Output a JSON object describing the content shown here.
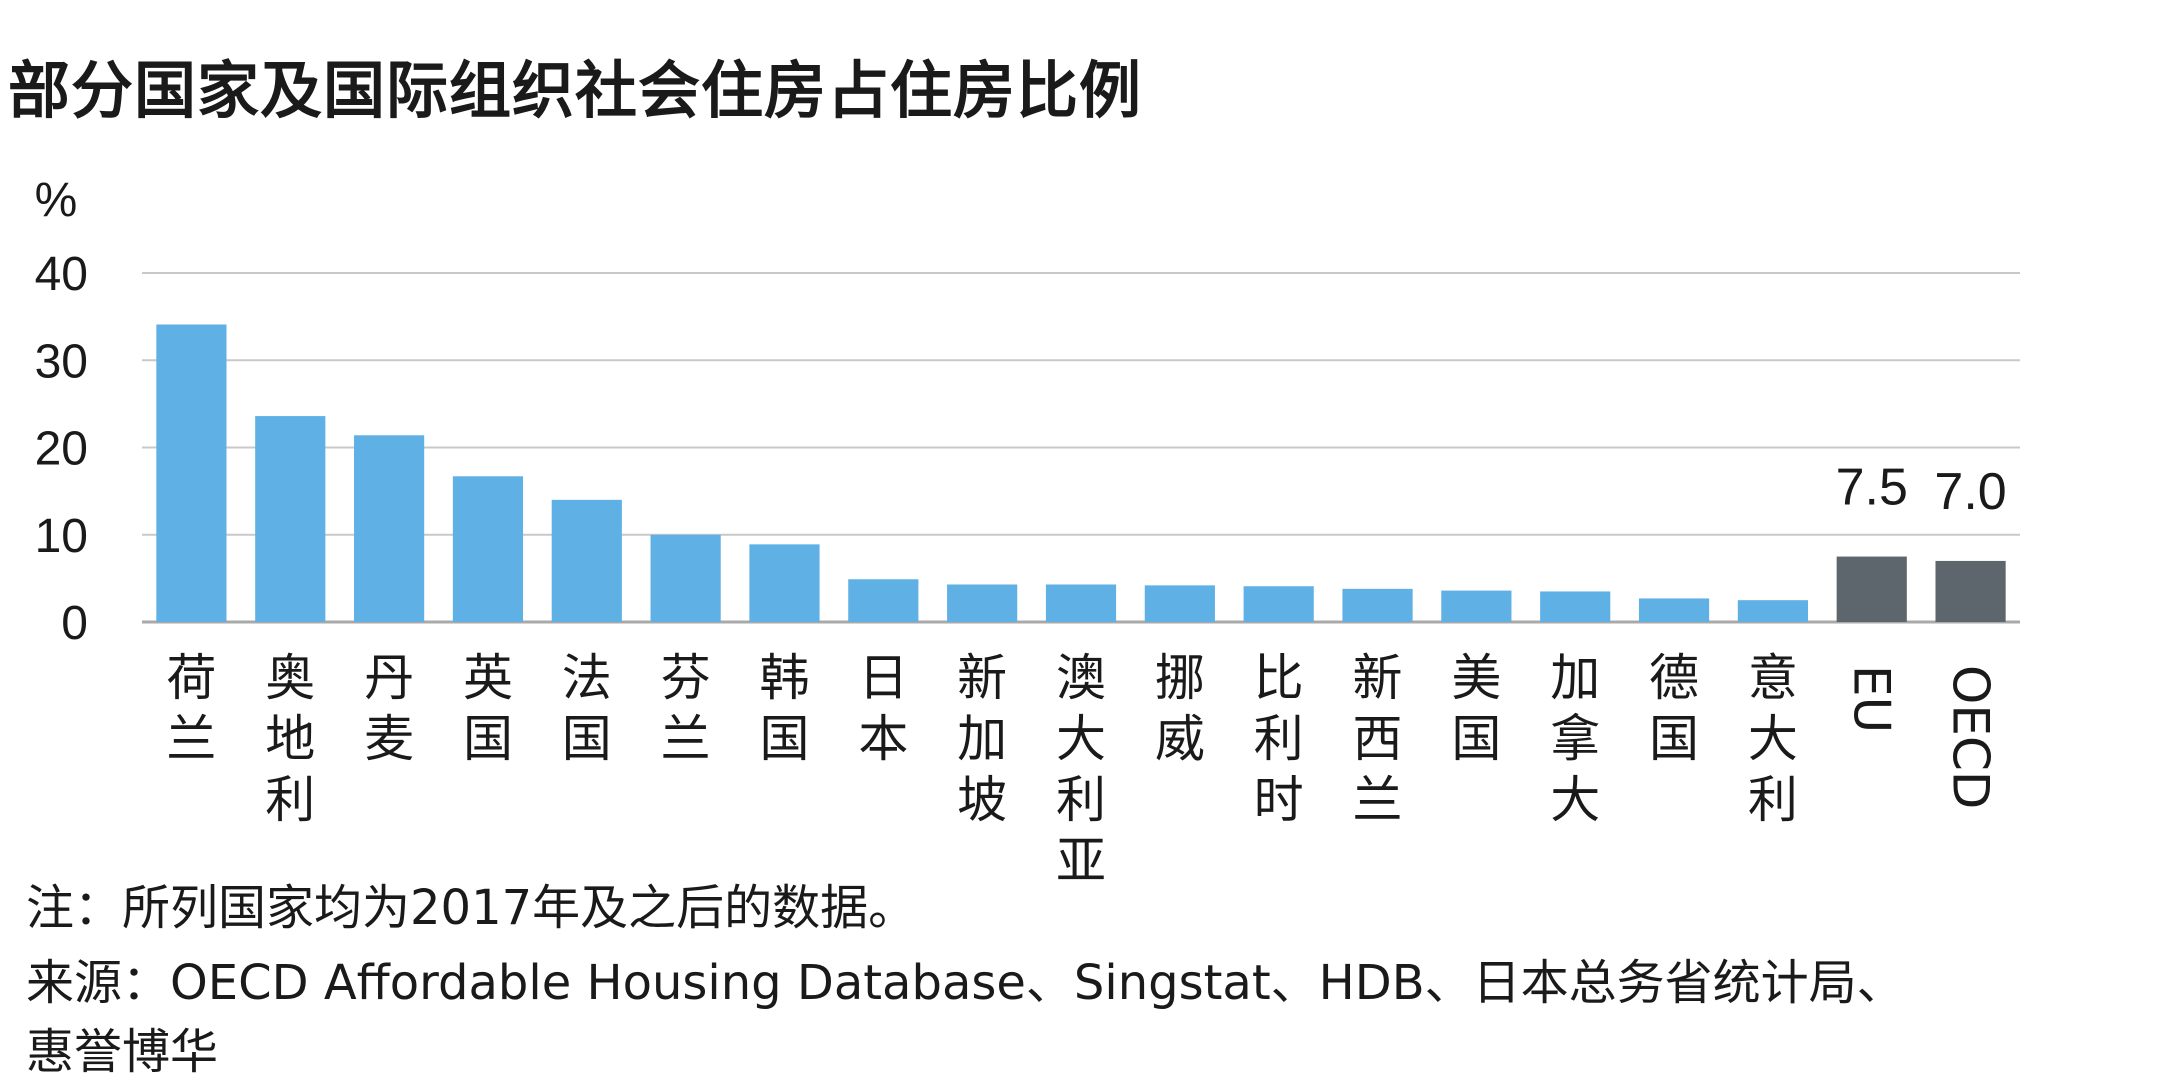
{
  "title": "部分国家及国际组织社会住房占住房比例",
  "note": "注：所列国家均为2017年及之后的数据。",
  "source_line1": "来源：OECD Affordable Housing Database、Singstat、HDB、日本总务省统计局、",
  "source_line2": "惠誉博华",
  "colors": {
    "country_bar": "#5fb0e4",
    "aggregate_bar": "#5e666d",
    "grid": "#c9c9c9"
  },
  "chart_data": {
    "type": "bar",
    "title": "部分国家及国际组织社会住房占住房比例",
    "ylabel": "%",
    "xlabel": "",
    "ylim": [
      0,
      40
    ],
    "yticks": [
      0,
      10,
      20,
      30,
      40
    ],
    "grid": true,
    "categories": [
      "荷兰",
      "奥地利",
      "丹麦",
      "英国",
      "法国",
      "芬兰",
      "韩国",
      "日本",
      "新加坡",
      "澳大利亚",
      "挪威",
      "比利时",
      "新西兰",
      "美国",
      "加拿大",
      "德国",
      "意大利",
      "EU",
      "OECD"
    ],
    "values": [
      34.1,
      23.6,
      21.4,
      16.7,
      14.0,
      10.0,
      8.9,
      4.9,
      4.3,
      4.3,
      4.2,
      4.1,
      3.8,
      3.6,
      3.5,
      2.7,
      2.5,
      7.5,
      7.0
    ],
    "bar_group": [
      "country",
      "country",
      "country",
      "country",
      "country",
      "country",
      "country",
      "country",
      "country",
      "country",
      "country",
      "country",
      "country",
      "country",
      "country",
      "country",
      "country",
      "aggregate",
      "aggregate"
    ],
    "data_labels": {
      "EU": "7.5",
      "OECD": "7.0"
    }
  }
}
